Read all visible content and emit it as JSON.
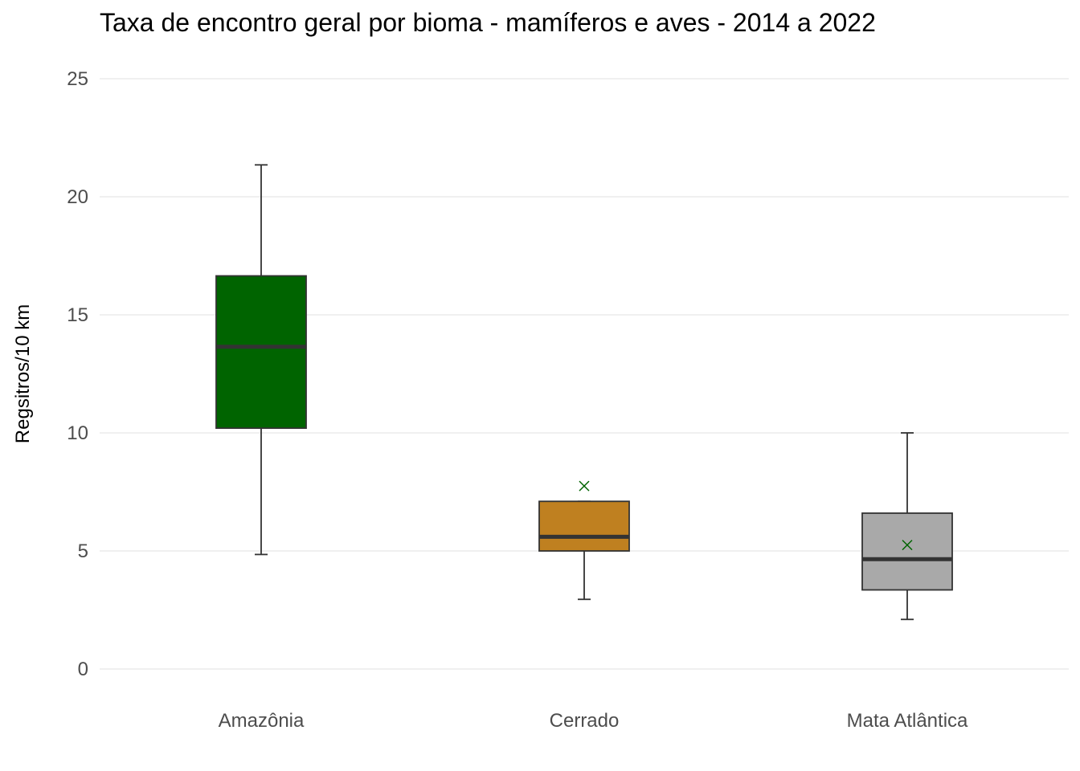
{
  "chart_data": {
    "type": "boxplot",
    "title": "Taxa de encontro geral por bioma - mamíferos e aves - 2014 a 2022",
    "xlabel": "",
    "ylabel": "Regsitros/10 km",
    "ylim": [
      0,
      25
    ],
    "yticks": [
      0,
      5,
      10,
      15,
      20,
      25
    ],
    "grid": true,
    "legend": "none",
    "categories": [
      "Amazônia",
      "Cerrado",
      "Mata Atlântica"
    ],
    "boxes": [
      {
        "category": "Amazônia",
        "whisker_low": 4.85,
        "q1": 10.2,
        "median": 13.65,
        "q3": 16.65,
        "whisker_high": 21.35,
        "outliers": [],
        "color": "#006400"
      },
      {
        "category": "Cerrado",
        "whisker_low": 2.95,
        "q1": 5.0,
        "median": 5.6,
        "q3": 7.1,
        "whisker_high": 7.1,
        "outliers": [
          7.75
        ],
        "color": "#BF8020"
      },
      {
        "category": "Mata Atlântica",
        "whisker_low": 2.1,
        "q1": 3.35,
        "median": 4.65,
        "q3": 6.6,
        "whisker_high": 10.0,
        "outliers": [
          5.25
        ],
        "color": "#A9A9A9"
      }
    ],
    "outlier_color": "#006400"
  }
}
